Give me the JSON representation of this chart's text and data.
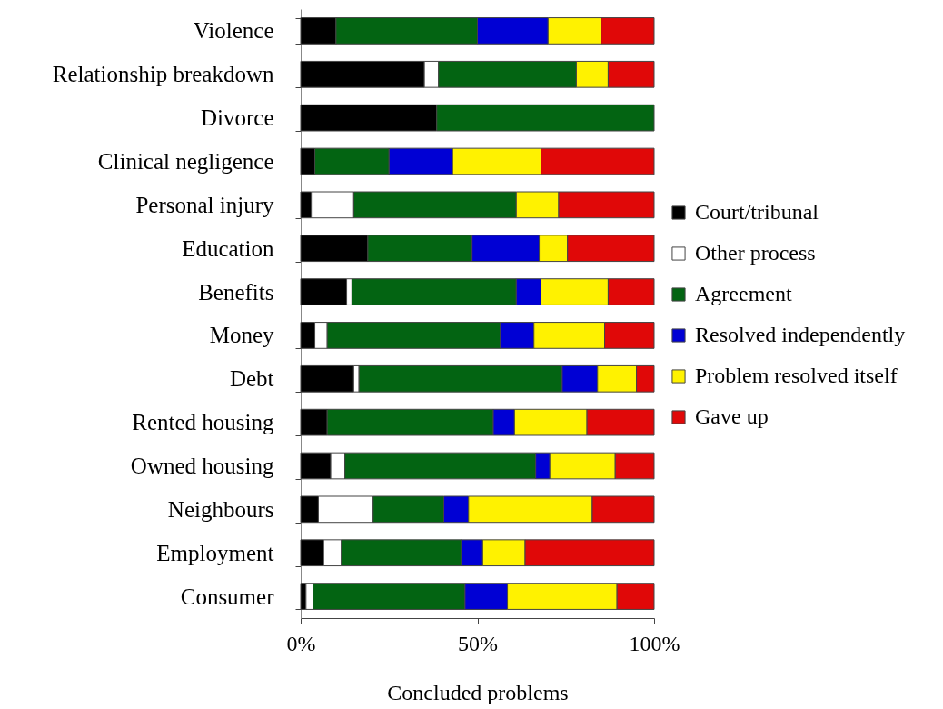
{
  "chart_data": {
    "type": "bar",
    "orientation": "horizontal",
    "stacked": true,
    "categories": [
      "Violence",
      "Relationship breakdown",
      "Divorce",
      "Clinical negligence",
      "Personal injury",
      "Education",
      "Benefits",
      "Money",
      "Debt",
      "Rented housing",
      "Owned housing",
      "Neighbours",
      "Employment",
      "Consumer"
    ],
    "series": [
      {
        "name": "Court/tribunal",
        "color": "#000000",
        "values": [
          10,
          35,
          38.5,
          4,
          3,
          19,
          13,
          4,
          15,
          7.5,
          8.5,
          5,
          6.5,
          1.5
        ]
      },
      {
        "name": "Other process",
        "color": "#ffffff",
        "values": [
          null,
          4,
          null,
          null,
          12,
          null,
          1.5,
          3.5,
          1.5,
          null,
          4,
          15.5,
          5,
          2
        ]
      },
      {
        "name": "Agreement",
        "color": "#036412",
        "values": [
          40,
          39,
          61.5,
          21,
          46,
          29.5,
          46.5,
          49,
          57.5,
          47,
          54,
          20,
          34,
          43
        ]
      },
      {
        "name": "Resolved independently",
        "color": "#0000d4",
        "values": [
          20,
          null,
          null,
          18,
          null,
          19,
          7,
          9.5,
          10,
          6,
          4,
          7,
          6,
          12
        ]
      },
      {
        "name": "Problem resolved itself",
        "color": "#fff200",
        "values": [
          15,
          9,
          null,
          25,
          12,
          8,
          19,
          20,
          11,
          20.5,
          18.5,
          35,
          12,
          31
        ]
      },
      {
        "name": "Gave up",
        "color": "#e00808",
        "values": [
          15,
          13,
          null,
          32,
          27,
          24.5,
          13,
          14,
          5,
          19,
          11,
          17.5,
          36.5,
          10.5
        ]
      }
    ],
    "xlim": [
      0,
      100
    ],
    "xticks": [
      {
        "value": 0,
        "label": "0%"
      },
      {
        "value": 50,
        "label": "50%"
      },
      {
        "value": 100,
        "label": "100%"
      }
    ],
    "xlabel": "Concluded problems",
    "legend": "right"
  }
}
